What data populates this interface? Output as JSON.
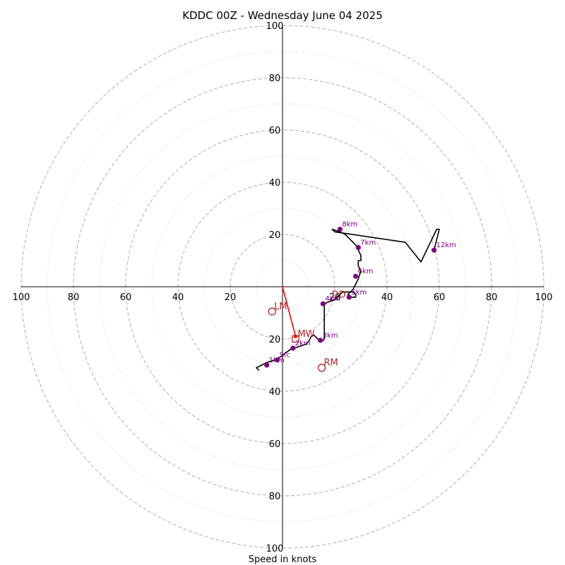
{
  "chart_data": {
    "type": "hodograph",
    "title": "KDDC 00Z - Wednesday June 04 2025",
    "xlabel": "Speed in knots",
    "max_speed": 100,
    "ring_major": [
      20,
      40,
      60,
      80,
      100
    ],
    "ring_minor": [
      10,
      30,
      50,
      70,
      90
    ],
    "ticks": {
      "right": [
        "20",
        "40",
        "60",
        "80",
        "100"
      ],
      "left": [
        "20",
        "40",
        "60",
        "80",
        "100"
      ],
      "up": [
        "20",
        "40",
        "60",
        "80",
        "100"
      ],
      "down": [
        "20",
        "40",
        "60",
        "80",
        "100"
      ]
    },
    "trace": [
      [
        -9,
        -32
      ],
      [
        -10,
        -31
      ],
      [
        -8,
        -30
      ],
      [
        -6,
        -29
      ],
      [
        -3,
        -28
      ],
      [
        -1,
        -27
      ],
      [
        3,
        -24
      ],
      [
        6,
        -23
      ],
      [
        9,
        -22
      ],
      [
        10,
        -21
      ],
      [
        11,
        -19
      ],
      [
        12,
        -18.5
      ],
      [
        13,
        -19.5
      ],
      [
        14,
        -20.5
      ],
      [
        15,
        -21
      ],
      [
        16,
        -20
      ],
      [
        16,
        -7
      ],
      [
        17,
        -6
      ],
      [
        20,
        -5
      ],
      [
        22,
        -3
      ],
      [
        23,
        -2
      ],
      [
        26,
        -2
      ],
      [
        27,
        -2
      ],
      [
        28,
        -3
      ],
      [
        28,
        -4
      ],
      [
        26,
        -4
      ],
      [
        25,
        -3
      ],
      [
        26,
        -2
      ],
      [
        27,
        -1
      ],
      [
        28,
        1
      ],
      [
        29,
        3
      ],
      [
        30,
        6
      ],
      [
        29,
        8
      ],
      [
        29,
        10
      ],
      [
        30,
        10
      ],
      [
        30,
        12
      ],
      [
        29,
        14
      ],
      [
        29,
        15
      ],
      [
        28,
        16
      ],
      [
        26,
        18
      ],
      [
        24,
        20
      ],
      [
        22,
        21
      ],
      [
        19,
        22
      ],
      [
        20,
        21
      ],
      [
        47,
        17
      ],
      [
        53,
        9.5
      ],
      [
        59,
        22
      ],
      [
        60,
        22
      ],
      [
        58,
        14
      ]
    ],
    "heights": [
      {
        "label": "Sfc",
        "u": -2,
        "v": -28
      },
      {
        "label": "1km",
        "u": -6,
        "v": -30
      },
      {
        "label": "2km",
        "u": 4,
        "v": -23.5
      },
      {
        "label": "3km",
        "u": 14.5,
        "v": -20.5
      },
      {
        "label": "4km",
        "u": 15.5,
        "v": -6.5
      },
      {
        "label": "5km",
        "u": 25.5,
        "v": -4
      },
      {
        "label": "6km",
        "u": 28,
        "v": 4
      },
      {
        "label": "7km",
        "u": 29,
        "v": 15
      },
      {
        "label": "8km",
        "u": 22,
        "v": 22
      },
      {
        "label": "12km",
        "u": 58,
        "v": 14
      }
    ],
    "shear_vector": {
      "from": [
        0,
        0
      ],
      "to": [
        5,
        -19
      ]
    },
    "storm_motion": [
      {
        "label": "LM",
        "u": -4,
        "v": -9.5,
        "marker": "circle"
      },
      {
        "label": "RM",
        "u": 15,
        "v": -31,
        "marker": "circle"
      },
      {
        "label": "MW",
        "u": 5,
        "v": -20,
        "marker": "square"
      },
      {
        "label": "DD",
        "u": 18,
        "v": -5,
        "marker": "none"
      }
    ],
    "colors": {
      "trace": "#000000",
      "height_dots": "#800080",
      "reference": "#b22222",
      "shear": "#ff0000",
      "ring_major": "#bbbbbb",
      "ring_minor": "#d8d8d8"
    }
  }
}
